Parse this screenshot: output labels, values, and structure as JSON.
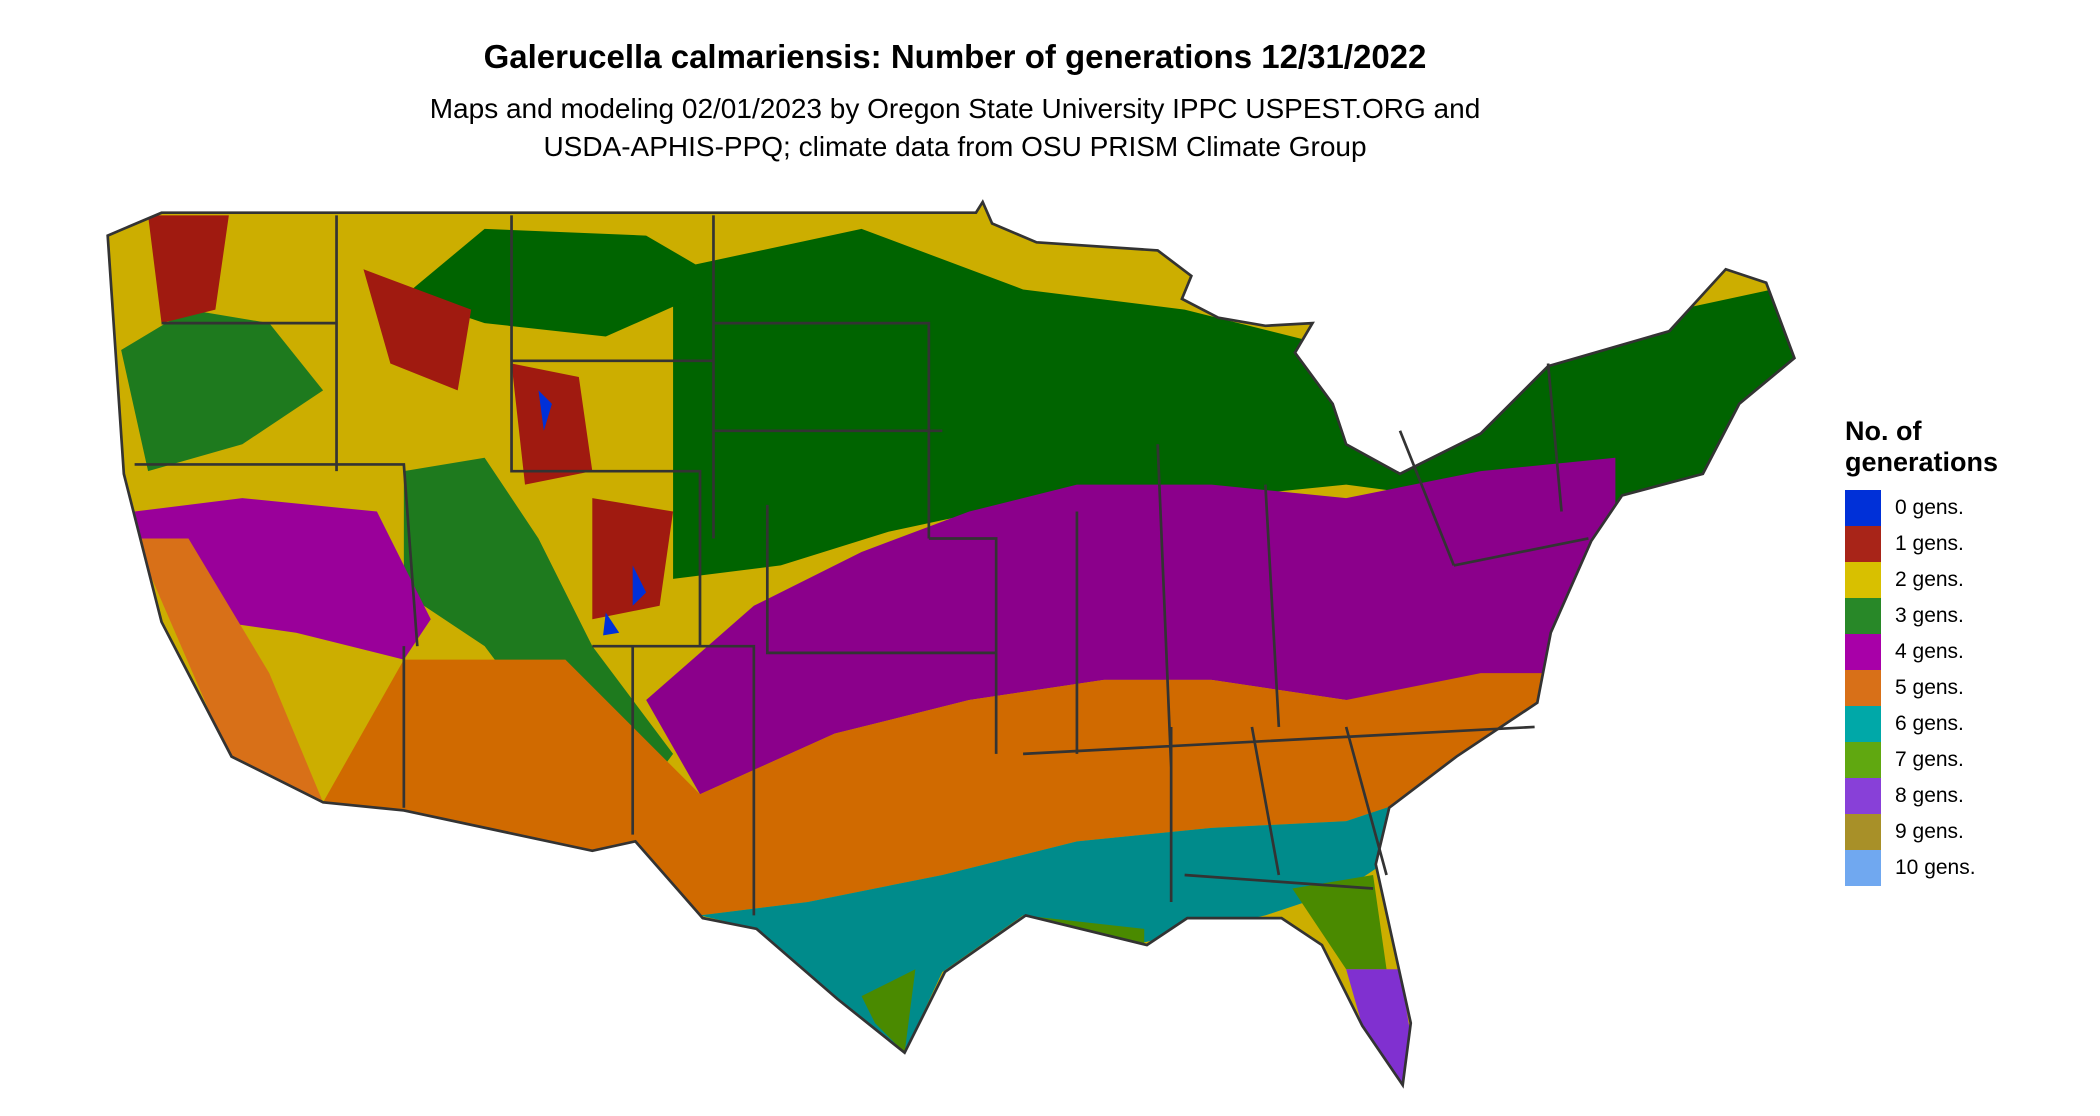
{
  "title": "Galerucella calmariensis: Number of generations 12/31/2022",
  "subtitle_lines": [
    "Maps and modeling 02/01/2023 by Oregon State University IPPC USPEST.ORG and",
    "USDA-APHIS-PPQ; climate data from OSU PRISM Climate Group"
  ],
  "legend": {
    "title_lines": [
      "No. of",
      "generations"
    ],
    "items": [
      {
        "label": "0 gens.",
        "color": "#0030D8"
      },
      {
        "label": "1 gens.",
        "color": "#A82418"
      },
      {
        "label": "2 gens.",
        "color": "#D8C000"
      },
      {
        "label": "3 gens.",
        "color": "#288828"
      },
      {
        "label": "4 gens.",
        "color": "#A800A8"
      },
      {
        "label": "5 gens.",
        "color": "#D87018"
      },
      {
        "label": "6 gens.",
        "color": "#00A8A8"
      },
      {
        "label": "7 gens.",
        "color": "#60A810"
      },
      {
        "label": "8 gens.",
        "color": "#8840D8"
      },
      {
        "label": "9 gens.",
        "color": "#A89028"
      },
      {
        "label": "10 gens.",
        "color": "#70A8F0"
      }
    ]
  },
  "chart_data": {
    "type": "heatmap",
    "region": "Conterminous United States",
    "variable": "Number of generations",
    "classes": [
      "0 gens.",
      "1 gens.",
      "2 gens.",
      "3 gens.",
      "4 gens.",
      "5 gens.",
      "6 gens.",
      "7 gens.",
      "8 gens.",
      "9 gens.",
      "10 gens."
    ],
    "legend_placement": "right"
  }
}
